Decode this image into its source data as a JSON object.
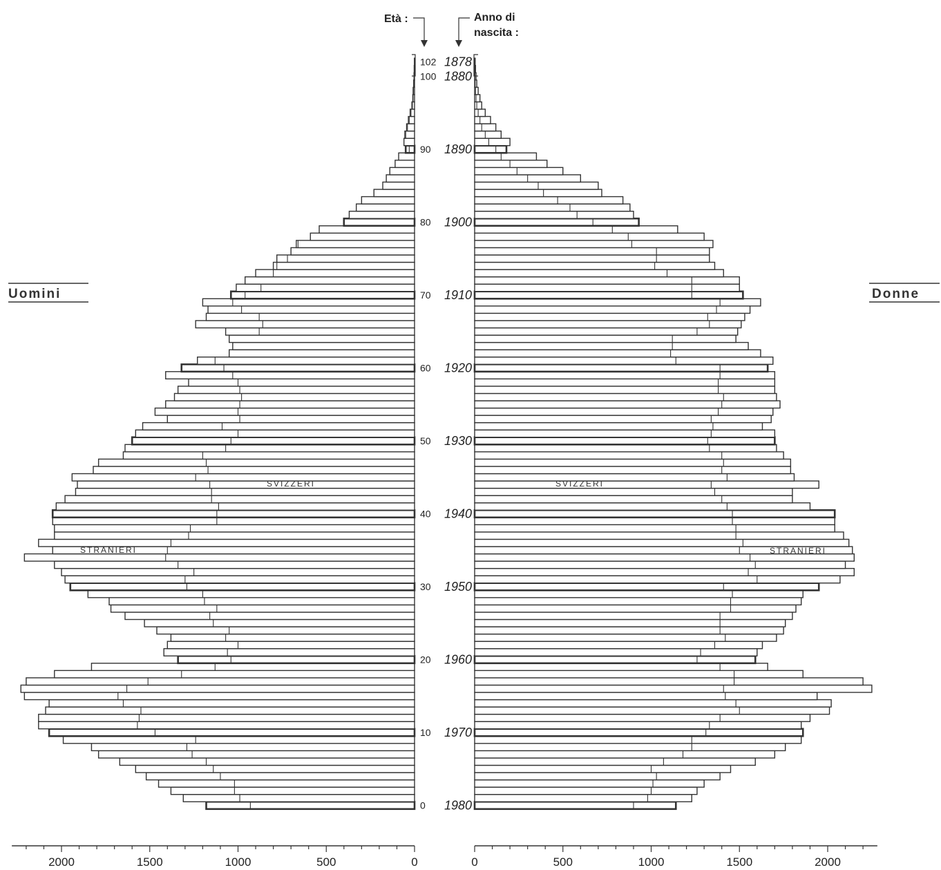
{
  "chart_data": {
    "type": "bar",
    "orientation": "horizontal",
    "age_header": "Età :",
    "birth_year_header_line1": "Anno di",
    "birth_year_header_line2": "nascita :",
    "men_label": "Uomini",
    "women_label": "Donne",
    "swiss_label": "SVIZZERI",
    "foreign_label": "STRANIERI",
    "xlim": [
      0,
      2250
    ],
    "x_ticks": [
      "0",
      "500",
      "1000",
      "1500",
      "2000"
    ],
    "age_ticks": [
      {
        "age": 0,
        "label": "0",
        "year": "1980"
      },
      {
        "age": 10,
        "label": "10",
        "year": "1970"
      },
      {
        "age": 20,
        "label": "20",
        "year": "1960"
      },
      {
        "age": 30,
        "label": "30",
        "year": "1950"
      },
      {
        "age": 40,
        "label": "40",
        "year": "1940"
      },
      {
        "age": 50,
        "label": "50",
        "year": "1930"
      },
      {
        "age": 60,
        "label": "60",
        "year": "1920"
      },
      {
        "age": 70,
        "label": "70",
        "year": "1910"
      },
      {
        "age": 80,
        "label": "80",
        "year": "1900"
      },
      {
        "age": 90,
        "label": "90",
        "year": "1890"
      },
      {
        "age": 100,
        "label": "100",
        "year": "1880"
      },
      {
        "age": 102,
        "label": "102",
        "year": "1878"
      }
    ],
    "ages": [
      0,
      1,
      2,
      3,
      4,
      5,
      6,
      7,
      8,
      9,
      10,
      11,
      12,
      13,
      14,
      15,
      16,
      17,
      18,
      19,
      20,
      21,
      22,
      23,
      24,
      25,
      26,
      27,
      28,
      29,
      30,
      31,
      32,
      33,
      34,
      35,
      36,
      37,
      38,
      39,
      40,
      41,
      42,
      43,
      44,
      45,
      46,
      47,
      48,
      49,
      50,
      51,
      52,
      53,
      54,
      55,
      56,
      57,
      58,
      59,
      60,
      61,
      62,
      63,
      64,
      65,
      66,
      67,
      68,
      69,
      70,
      71,
      72,
      73,
      74,
      75,
      76,
      77,
      78,
      79,
      80,
      81,
      82,
      83,
      84,
      85,
      86,
      87,
      88,
      89,
      90,
      91,
      92,
      93,
      94,
      95,
      96,
      97,
      98,
      99,
      100,
      101,
      102
    ],
    "men_swiss": [
      930,
      990,
      1020,
      1020,
      1100,
      1140,
      1180,
      1260,
      1290,
      1240,
      1470,
      1570,
      1560,
      1550,
      1650,
      1680,
      1630,
      1510,
      1320,
      1130,
      1040,
      1060,
      1000,
      1070,
      1050,
      1140,
      1160,
      1120,
      1190,
      1200,
      1290,
      1300,
      1250,
      1340,
      1410,
      1400,
      1380,
      1280,
      1270,
      1120,
      1120,
      1110,
      1150,
      1150,
      1160,
      1240,
      1170,
      1180,
      1200,
      1070,
      1040,
      1000,
      1090,
      990,
      1000,
      990,
      980,
      990,
      1000,
      1030,
      1080,
      1130,
      1140,
      1060,
      1070,
      880,
      860,
      880,
      980,
      1030,
      960,
      870,
      960,
      800,
      780,
      720,
      700,
      660,
      630,
      540,
      400,
      380,
      350,
      310,
      280,
      210,
      180,
      150,
      130,
      100,
      30,
      60,
      50,
      40,
      30,
      20,
      12,
      8,
      6,
      4,
      2,
      1,
      1
    ],
    "men_total": [
      1180,
      1310,
      1380,
      1450,
      1520,
      1580,
      1670,
      1790,
      1830,
      1990,
      2070,
      2130,
      2130,
      2090,
      2070,
      2210,
      2230,
      2200,
      2040,
      1830,
      1340,
      1420,
      1400,
      1380,
      1460,
      1530,
      1640,
      1720,
      1730,
      1850,
      1950,
      1980,
      2000,
      2040,
      2210,
      2050,
      2130,
      2040,
      2040,
      2050,
      2050,
      2030,
      1980,
      1920,
      1910,
      1940,
      1820,
      1790,
      1650,
      1640,
      1600,
      1580,
      1540,
      1400,
      1470,
      1410,
      1360,
      1340,
      1280,
      1410,
      1320,
      1230,
      1050,
      1030,
      1050,
      1070,
      1240,
      1180,
      1170,
      1200,
      1040,
      1010,
      960,
      900,
      800,
      780,
      700,
      670,
      590,
      540,
      400,
      370,
      330,
      300,
      230,
      180,
      160,
      140,
      110,
      90,
      50,
      60,
      55,
      45,
      35,
      25,
      15,
      10,
      8,
      5,
      3,
      2,
      1
    ]
  },
  "women_data": {
    "women_swiss": [
      900,
      980,
      1000,
      1010,
      1030,
      1000,
      1070,
      1180,
      1230,
      1230,
      1310,
      1330,
      1390,
      1500,
      1480,
      1420,
      1410,
      1470,
      1470,
      1390,
      1260,
      1280,
      1360,
      1420,
      1390,
      1390,
      1390,
      1450,
      1450,
      1460,
      1410,
      1600,
      1550,
      1590,
      1560,
      1500,
      1520,
      1480,
      1480,
      1460,
      1460,
      1430,
      1400,
      1360,
      1340,
      1430,
      1400,
      1410,
      1400,
      1330,
      1320,
      1340,
      1350,
      1340,
      1380,
      1400,
      1410,
      1380,
      1380,
      1390,
      1390,
      1140,
      1110,
      1120,
      1120,
      1260,
      1330,
      1320,
      1370,
      1390,
      1230,
      1230,
      1230,
      1090,
      1020,
      1030,
      1030,
      890,
      870,
      780,
      670,
      580,
      540,
      470,
      390,
      360,
      300,
      240,
      200,
      150,
      120,
      80,
      60,
      40,
      30,
      20,
      12,
      8,
      5,
      3,
      2,
      1,
      1
    ],
    "women_total": [
      1140,
      1230,
      1260,
      1300,
      1390,
      1450,
      1590,
      1700,
      1760,
      1850,
      1860,
      1850,
      1900,
      2010,
      2020,
      1940,
      2250,
      2200,
      1860,
      1660,
      1590,
      1600,
      1630,
      1710,
      1750,
      1760,
      1800,
      1820,
      1850,
      1860,
      1950,
      2070,
      2150,
      2100,
      2150,
      2140,
      2120,
      2090,
      2040,
      2040,
      2040,
      1900,
      1800,
      1800,
      1950,
      1810,
      1790,
      1790,
      1750,
      1710,
      1700,
      1700,
      1630,
      1680,
      1690,
      1730,
      1710,
      1700,
      1700,
      1700,
      1660,
      1690,
      1620,
      1550,
      1480,
      1490,
      1510,
      1530,
      1560,
      1620,
      1520,
      1500,
      1500,
      1410,
      1360,
      1330,
      1330,
      1350,
      1300,
      1150,
      930,
      900,
      880,
      840,
      720,
      700,
      600,
      500,
      410,
      350,
      180,
      200,
      150,
      120,
      90,
      60,
      40,
      30,
      20,
      12,
      8,
      5,
      3
    ]
  }
}
